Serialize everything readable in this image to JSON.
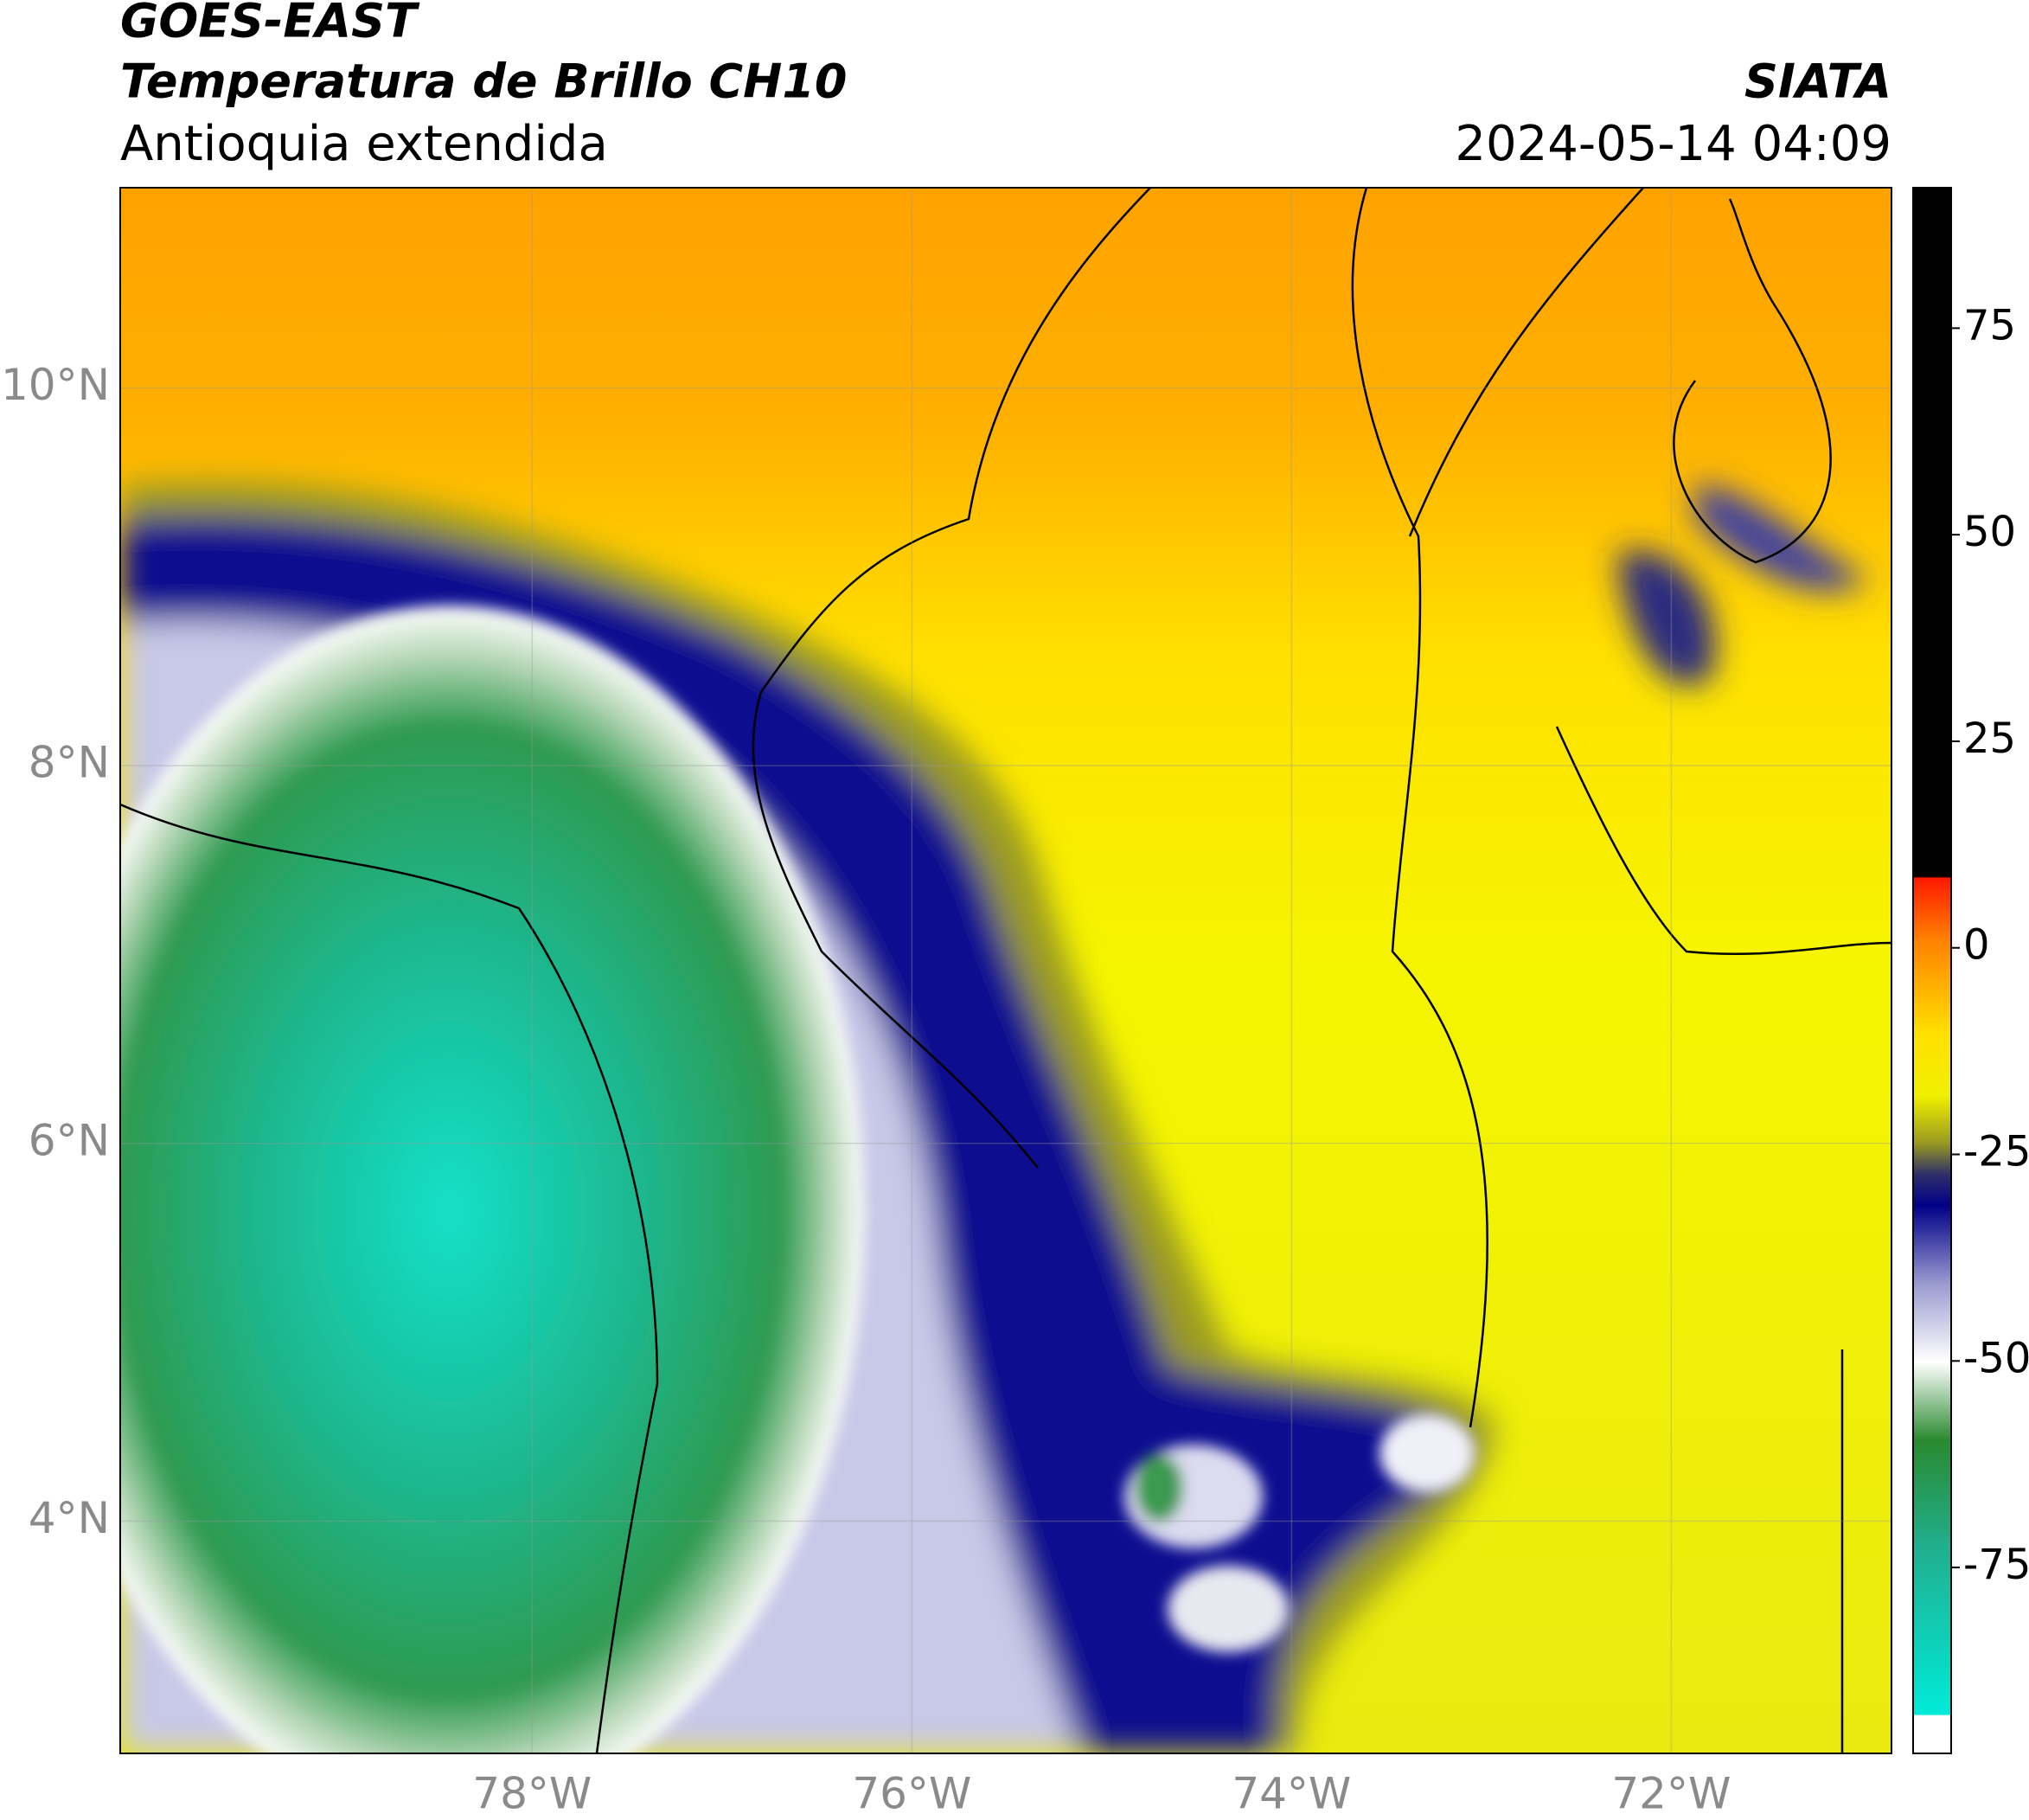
{
  "header": {
    "title": "GOES-EAST",
    "subtitle": "Temperatura de Brillo CH10",
    "region": "Antioquia extendida",
    "source": "SIATA",
    "datetime": "2024-05-14 04:09"
  },
  "map": {
    "xlim": [
      -80.17,
      -70.84
    ],
    "ylim": [
      2.77,
      11.06
    ],
    "xticks": [
      {
        "value": -78,
        "label": "78°W"
      },
      {
        "value": -76,
        "label": "76°W"
      },
      {
        "value": -74,
        "label": "74°W"
      },
      {
        "value": -72,
        "label": "72°W"
      }
    ],
    "yticks": [
      {
        "value": 10,
        "label": "10°N"
      },
      {
        "value": 8,
        "label": "8°N"
      },
      {
        "value": 6,
        "label": "6°N"
      },
      {
        "value": 4,
        "label": "4°N"
      }
    ],
    "grid": true
  },
  "colorbar": {
    "lim": [
      -97.5,
      92
    ],
    "ticks": [
      75,
      50,
      25,
      0,
      -25,
      -50,
      -75
    ]
  }
}
